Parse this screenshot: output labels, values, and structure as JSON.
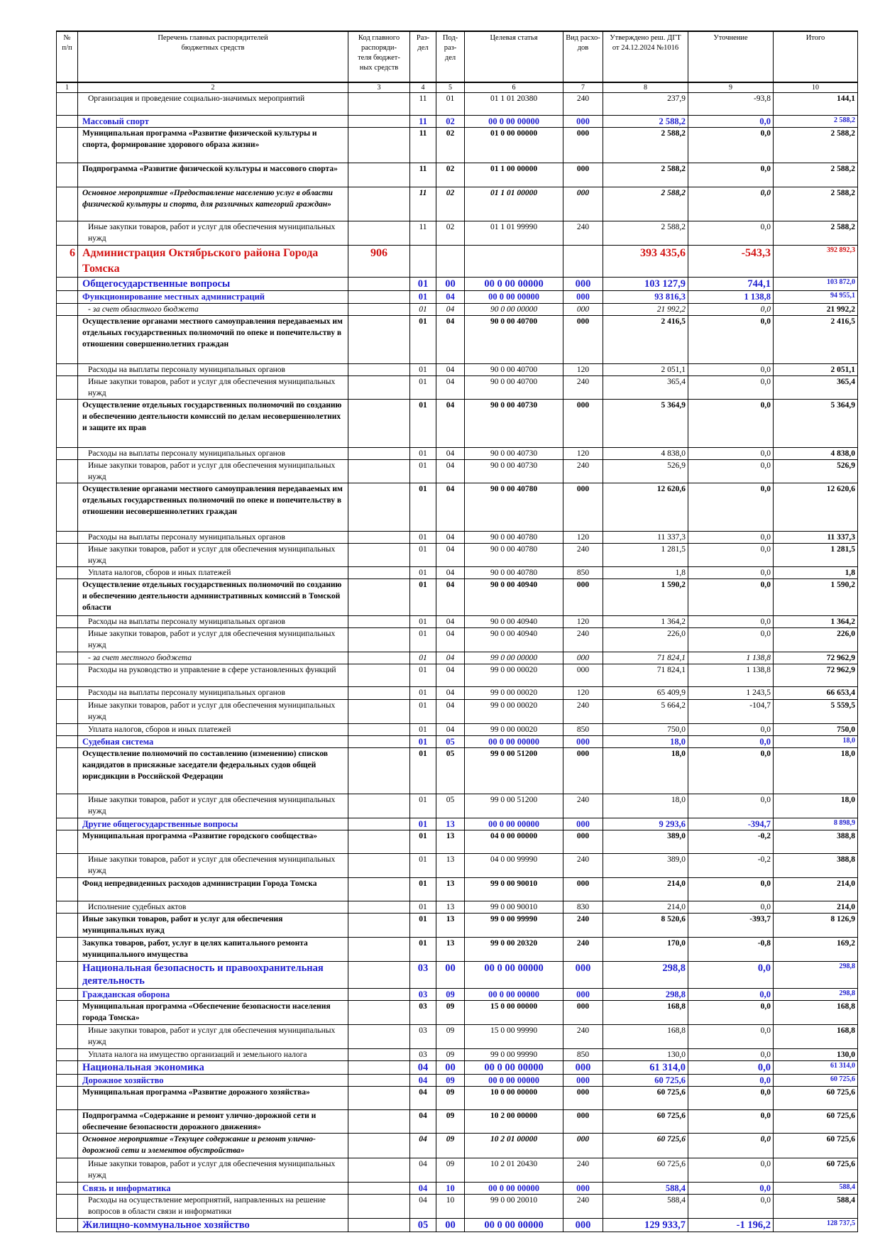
{
  "header": {
    "columns": [
      "№\nп/п",
      "Перечень главных распорядителей\nбюджетных средств",
      "Код главного\nраспоряди-\nтеля бюджет-\nных средств",
      "Раз-\nдел",
      "Под-\nраз-\nдел",
      "Целевая статья",
      "Вид расхо-\nдов",
      "Утверждено реш. ДГТ\nот 24.12.2024 №1016",
      "Уточнение",
      "Итого"
    ],
    "numbers": [
      "1",
      "2",
      "3",
      "4",
      "5",
      "6",
      "7",
      "8",
      "9",
      "10"
    ]
  },
  "rows": [
    {
      "name": "Организация и проведение социально-значимых мероприятий",
      "razdel": "11",
      "podrazdel": "01",
      "article": "01 1 01 20380",
      "vid": "240",
      "approved": "237,9",
      "change": "-93,8",
      "total": "144,1"
    },
    {
      "name": "Массовый спорт",
      "razdel": "11",
      "podrazdel": "02",
      "article": "00 0 00 00000",
      "vid": "000",
      "approved": "2 588,2",
      "change": "0,0",
      "total": "2 588,2"
    },
    {
      "name": "Муниципальная программа «Развитие физической культуры и спорта, формирование здорового образа жизни»",
      "razdel": "11",
      "podrazdel": "02",
      "article": "01 0 00 00000",
      "vid": "000",
      "approved": "2 588,2",
      "change": "0,0",
      "total": "2 588,2"
    },
    {
      "name": "Подпрограмма «Развитие физической культуры и массового спорта»",
      "razdel": "11",
      "podrazdel": "02",
      "article": "01 1 00 00000",
      "vid": "000",
      "approved": "2 588,2",
      "change": "0,0",
      "total": "2 588,2"
    },
    {
      "name": "Основное мероприятие «Предоставление населению услуг в области физической культуры и спорта, для различных категорий граждан»",
      "razdel": "11",
      "podrazdel": "02",
      "article": "01 1 01 00000",
      "vid": "000",
      "approved": "2 588,2",
      "change": "0,0",
      "total": "2 588,2"
    },
    {
      "name": "Иные закупки товаров, работ и услуг для обеспечения муниципальных нужд",
      "razdel": "11",
      "podrazdel": "02",
      "article": "01 1 01 99990",
      "vid": "240",
      "approved": "2 588,2",
      "change": "0,0",
      "total": "2 588,2"
    },
    {
      "num": "6",
      "name": "Администрация Октябрьского района Города Томска",
      "code": "906",
      "approved": "393 435,6",
      "change": "-543,3",
      "total": "392 892,3"
    },
    {
      "name": "Общегосударственные вопросы",
      "razdel": "01",
      "podrazdel": "00",
      "article": "00 0 00 00000",
      "vid": "000",
      "approved": "103 127,9",
      "change": "744,1",
      "total": "103 872,0"
    },
    {
      "name": "Функционирование местных администраций",
      "razdel": "01",
      "podrazdel": "04",
      "article": "00 0 00 00000",
      "vid": "000",
      "approved": "93 816,3",
      "change": "1 138,8",
      "total": "94 955,1"
    },
    {
      "name": "- за счет областного бюджета",
      "razdel": "01",
      "podrazdel": "04",
      "article": "90 0 00 00000",
      "vid": "000",
      "approved": "21 992,2",
      "change": "0,0",
      "total": "21 992,2"
    },
    {
      "name": "Осуществление органами местного самоуправления передаваемых им отдельных государственных полномочий по опеке и попечительству в отношении совершеннолетних граждан",
      "razdel": "01",
      "podrazdel": "04",
      "article": "90 0 00 40700",
      "vid": "000",
      "approved": "2 416,5",
      "change": "0,0",
      "total": "2 416,5"
    },
    {
      "name": "Расходы на выплаты персоналу муниципальных органов",
      "razdel": "01",
      "podrazdel": "04",
      "article": "90 0 00 40700",
      "vid": "120",
      "approved": "2 051,1",
      "change": "0,0",
      "total": "2 051,1"
    },
    {
      "name": "Иные закупки товаров, работ и услуг для обеспечения муниципальных нужд",
      "razdel": "01",
      "podrazdel": "04",
      "article": "90 0 00 40700",
      "vid": "240",
      "approved": "365,4",
      "change": "0,0",
      "total": "365,4"
    },
    {
      "name": "Осуществление отдельных государственных полномочий по созданию и обеспечению деятельности комиссий по делам несовершеннолетних и защите их прав",
      "razdel": "01",
      "podrazdel": "04",
      "article": "90 0 00 40730",
      "vid": "000",
      "approved": "5 364,9",
      "change": "0,0",
      "total": "5 364,9"
    },
    {
      "name": "Расходы на выплаты персоналу муниципальных органов",
      "razdel": "01",
      "podrazdel": "04",
      "article": "90 0 00 40730",
      "vid": "120",
      "approved": "4 838,0",
      "change": "0,0",
      "total": "4 838,0"
    },
    {
      "name": "Иные закупки товаров, работ и услуг для обеспечения муниципальных нужд",
      "razdel": "01",
      "podrazdel": "04",
      "article": "90 0 00 40730",
      "vid": "240",
      "approved": "526,9",
      "change": "0,0",
      "total": "526,9"
    },
    {
      "name": "Осуществление органами местного самоуправления передаваемых им отдельных государственных полномочий по опеке и попечительству в отношении несовершеннолетних граждан",
      "razdel": "01",
      "podrazdel": "04",
      "article": "90 0 00 40780",
      "vid": "000",
      "approved": "12 620,6",
      "change": "0,0",
      "total": "12 620,6"
    },
    {
      "name": "Расходы на выплаты персоналу муниципальных органов",
      "razdel": "01",
      "podrazdel": "04",
      "article": "90 0 00 40780",
      "vid": "120",
      "approved": "11 337,3",
      "change": "0,0",
      "total": "11 337,3"
    },
    {
      "name": "Иные закупки товаров, работ и услуг для обеспечения муниципальных нужд",
      "razdel": "01",
      "podrazdel": "04",
      "article": "90 0 00 40780",
      "vid": "240",
      "approved": "1 281,5",
      "change": "0,0",
      "total": "1 281,5"
    },
    {
      "name": "Уплата налогов, сборов и иных платежей",
      "razdel": "01",
      "podrazdel": "04",
      "article": "90 0 00 40780",
      "vid": "850",
      "approved": "1,8",
      "change": "0,0",
      "total": "1,8"
    },
    {
      "name": "Осуществление отдельных государственных полномочий по созданию и обеспечению деятельности административных комиссий в Томской области",
      "razdel": "01",
      "podrazdel": "04",
      "article": "90 0 00 40940",
      "vid": "000",
      "approved": "1 590,2",
      "change": "0,0",
      "total": "1 590,2"
    },
    {
      "name": "Расходы на выплаты персоналу муниципальных органов",
      "razdel": "01",
      "podrazdel": "04",
      "article": "90 0 00 40940",
      "vid": "120",
      "approved": "1 364,2",
      "change": "0,0",
      "total": "1 364,2"
    },
    {
      "name": "Иные закупки товаров, работ и услуг для обеспечения муниципальных нужд",
      "razdel": "01",
      "podrazdel": "04",
      "article": "90 0 00 40940",
      "vid": "240",
      "approved": "226,0",
      "change": "0,0",
      "total": "226,0"
    },
    {
      "name": "- за счет местного бюджета",
      "razdel": "01",
      "podrazdel": "04",
      "article": "99 0 00 00000",
      "vid": "000",
      "approved": "71 824,1",
      "change": "1 138,8",
      "total": "72 962,9"
    },
    {
      "name": "Расходы на руководство и управление в сфере установленных функций",
      "razdel": "01",
      "podrazdel": "04",
      "article": "99 0 00 00020",
      "vid": "000",
      "approved": "71 824,1",
      "change": "1 138,8",
      "total": "72 962,9"
    },
    {
      "name": "Расходы на выплаты персоналу муниципальных органов",
      "razdel": "01",
      "podrazdel": "04",
      "article": "99 0 00 00020",
      "vid": "120",
      "approved": "65 409,9",
      "change": "1 243,5",
      "total": "66 653,4"
    },
    {
      "name": "Иные закупки товаров, работ и услуг для обеспечения муниципальных нужд",
      "razdel": "01",
      "podrazdel": "04",
      "article": "99 0 00 00020",
      "vid": "240",
      "approved": "5 664,2",
      "change": "-104,7",
      "total": "5 559,5"
    },
    {
      "name": "Уплата налогов, сборов и иных платежей",
      "razdel": "01",
      "podrazdel": "04",
      "article": "99 0 00 00020",
      "vid": "850",
      "approved": "750,0",
      "change": "0,0",
      "total": "750,0"
    },
    {
      "name": "Судебная система",
      "razdel": "01",
      "podrazdel": "05",
      "article": "00 0 00 00000",
      "vid": "000",
      "approved": "18,0",
      "change": "0,0",
      "total": "18,0"
    },
    {
      "name": "Осуществление полномочий по составлению (изменению) списков кандидатов в присяжные заседатели федеральных судов общей юрисдикции в Российской Федерации",
      "razdel": "01",
      "podrazdel": "05",
      "article": "99 0 00 51200",
      "vid": "000",
      "approved": "18,0",
      "change": "0,0",
      "total": "18,0"
    },
    {
      "name": "Иные закупки товаров, работ и услуг для обеспечения муниципальных нужд",
      "razdel": "01",
      "podrazdel": "05",
      "article": "99 0 00 51200",
      "vid": "240",
      "approved": "18,0",
      "change": "0,0",
      "total": "18,0"
    },
    {
      "name": "Другие общегосударственные вопросы",
      "razdel": "01",
      "podrazdel": "13",
      "article": "00 0 00 00000",
      "vid": "000",
      "approved": "9 293,6",
      "change": "-394,7",
      "total": "8 898,9"
    },
    {
      "name": "Муниципальная программа «Развитие городского сообщества»",
      "razdel": "01",
      "podrazdel": "13",
      "article": "04 0 00 00000",
      "vid": "000",
      "approved": "389,0",
      "change": "-0,2",
      "total": "388,8"
    },
    {
      "name": "Иные закупки товаров, работ и услуг для обеспечения муниципальных нужд",
      "razdel": "01",
      "podrazdel": "13",
      "article": "04 0 00 99990",
      "vid": "240",
      "approved": "389,0",
      "change": "-0,2",
      "total": "388,8"
    },
    {
      "name": "Фонд непредвиденных расходов администрации Города Томска",
      "razdel": "01",
      "podrazdel": "13",
      "article": "99 0 00 90010",
      "vid": "000",
      "approved": "214,0",
      "change": "0,0",
      "total": "214,0"
    },
    {
      "name": "Исполнение судебных актов",
      "razdel": "01",
      "podrazdel": "13",
      "article": "99 0 00 90010",
      "vid": "830",
      "approved": "214,0",
      "change": "0,0",
      "total": "214,0"
    },
    {
      "name": "Иные закупки товаров, работ и услуг для обеспечения муниципальных нужд",
      "razdel": "01",
      "podrazdel": "13",
      "article": "99 0 00 99990",
      "vid": "240",
      "approved": "8 520,6",
      "change": "-393,7",
      "total": "8 126,9"
    },
    {
      "name": "Закупка товаров, работ, услуг в целях капитального ремонта муниципального имущества",
      "razdel": "01",
      "podrazdel": "13",
      "article": "99 0 00 20320",
      "vid": "240",
      "approved": "170,0",
      "change": "-0,8",
      "total": "169,2"
    },
    {
      "name": "Национальная безопасность и правоохранительная деятельность",
      "razdel": "03",
      "podrazdel": "00",
      "article": "00 0 00 00000",
      "vid": "000",
      "approved": "298,8",
      "change": "0,0",
      "total": "298,8"
    },
    {
      "name": "Гражданская оборона",
      "razdel": "03",
      "podrazdel": "09",
      "article": "00 0 00 00000",
      "vid": "000",
      "approved": "298,8",
      "change": "0,0",
      "total": "298,8"
    },
    {
      "name": "Муниципальная программа «Обеспечение безопасности населения города Томска»",
      "razdel": "03",
      "podrazdel": "09",
      "article": "15 0 00 00000",
      "vid": "000",
      "approved": "168,8",
      "change": "0,0",
      "total": "168,8"
    },
    {
      "name": "Иные закупки товаров, работ и услуг для обеспечения муниципальных нужд",
      "razdel": "03",
      "podrazdel": "09",
      "article": "15 0 00 99990",
      "vid": "240",
      "approved": "168,8",
      "change": "0,0",
      "total": "168,8"
    },
    {
      "name": "Уплата налога на имущество организаций и земельного налога",
      "razdel": "03",
      "podrazdel": "09",
      "article": "99 0 00 99990",
      "vid": "850",
      "approved": "130,0",
      "change": "0,0",
      "total": "130,0"
    },
    {
      "name": "Национальная экономика",
      "razdel": "04",
      "podrazdel": "00",
      "article": "00 0 00 00000",
      "vid": "000",
      "approved": "61 314,0",
      "change": "0,0",
      "total": "61 314,0"
    },
    {
      "name": "Дорожное хозяйство",
      "razdel": "04",
      "podrazdel": "09",
      "article": "00 0 00 00000",
      "vid": "000",
      "approved": "60 725,6",
      "change": "0,0",
      "total": "60 725,6"
    },
    {
      "name": "Муниципальная программа «Развитие дорожного хозяйства»",
      "razdel": "04",
      "podrazdel": "09",
      "article": "10 0 00 00000",
      "vid": "000",
      "approved": "60 725,6",
      "change": "0,0",
      "total": "60 725,6"
    },
    {
      "name": "Подпрограмма «Содержание и ремонт улично-дорожной сети и обеспечение безопасности дорожного движения»",
      "razdel": "04",
      "podrazdel": "09",
      "article": "10 2 00 00000",
      "vid": "000",
      "approved": "60 725,6",
      "change": "0,0",
      "total": "60 725,6"
    },
    {
      "name": "Основное мероприятие «Текущее содержание и ремонт улично-дорожной сети и элементов обустройства»",
      "razdel": "04",
      "podrazdel": "09",
      "article": "10 2 01 00000",
      "vid": "000",
      "approved": "60 725,6",
      "change": "0,0",
      "total": "60 725,6"
    },
    {
      "name": "Иные закупки товаров, работ и услуг для обеспечения муниципальных нужд",
      "razdel": "04",
      "podrazdel": "09",
      "article": "10 2 01 20430",
      "vid": "240",
      "approved": "60 725,6",
      "change": "0,0",
      "total": "60 725,6"
    },
    {
      "name": "Связь и информатика",
      "razdel": "04",
      "podrazdel": "10",
      "article": "00 0 00 00000",
      "vid": "000",
      "approved": "588,4",
      "change": "0,0",
      "total": "588,4"
    },
    {
      "name": "Расходы на осуществление мероприятий, направленных на решение вопросов в области связи и информатики",
      "razdel": "04",
      "podrazdel": "10",
      "article": "99 0 00 20010",
      "vid": "240",
      "approved": "588,4",
      "change": "0,0",
      "total": "588,4"
    },
    {
      "name": "Жилищно-коммунальное хозяйство",
      "razdel": "05",
      "podrazdel": "00",
      "article": "00 0 00 00000",
      "vid": "000",
      "approved": "129 933,7",
      "change": "-1 196,2",
      "total": "128 737,5"
    }
  ]
}
